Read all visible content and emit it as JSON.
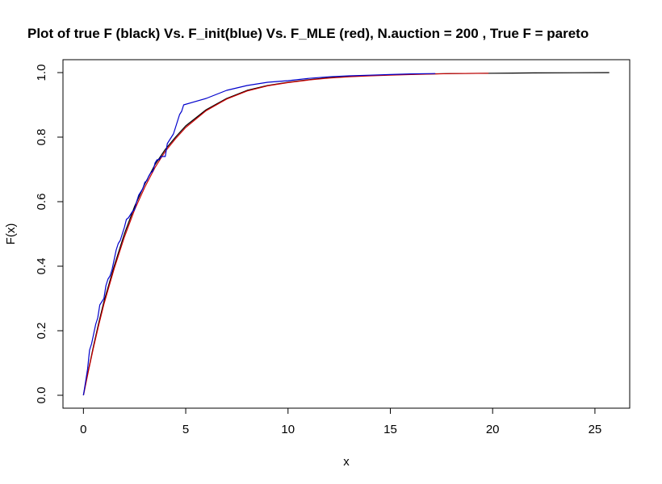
{
  "chart_data": {
    "type": "line",
    "title": "Plot of true F (black) Vs. F_init(blue) Vs. F_MLE (red), N.auction = 200 , True F = pareto",
    "xlabel": "x",
    "ylabel": "F(x)",
    "xlim": [
      -1.0,
      26.7
    ],
    "ylim": [
      -0.04,
      1.04
    ],
    "x_ticks": [
      0,
      5,
      10,
      15,
      20,
      25
    ],
    "x_tick_labels": [
      "0",
      "5",
      "10",
      "15",
      "20",
      "25"
    ],
    "y_ticks": [
      0.0,
      0.2,
      0.4,
      0.6,
      0.8,
      1.0
    ],
    "y_tick_labels": [
      "0.0",
      "0.2",
      "0.4",
      "0.6",
      "0.8",
      "1.0"
    ],
    "grid": false,
    "legend": "none",
    "series": [
      {
        "color": "#000000",
        "x": [
          0,
          0.25,
          0.5,
          0.75,
          1,
          1.5,
          2,
          2.5,
          3,
          3.5,
          4,
          4.5,
          5,
          6,
          7,
          8,
          9,
          10,
          11,
          12,
          13,
          14,
          15,
          16,
          18,
          20,
          22,
          24,
          25.7
        ],
        "y": [
          0.0,
          0.08,
          0.155,
          0.225,
          0.29,
          0.4,
          0.5,
          0.585,
          0.655,
          0.715,
          0.762,
          0.8,
          0.835,
          0.885,
          0.92,
          0.945,
          0.96,
          0.97,
          0.978,
          0.984,
          0.988,
          0.991,
          0.993,
          0.995,
          0.997,
          0.998,
          0.999,
          0.9995,
          1.0
        ]
      },
      {
        "color": "#cc0000",
        "x": [
          0,
          0.25,
          0.5,
          0.75,
          1,
          1.5,
          2,
          2.5,
          3,
          3.5,
          4,
          4.5,
          5,
          6,
          7,
          8,
          9,
          10,
          11,
          12,
          13,
          14,
          15,
          16,
          18,
          19.8
        ],
        "y": [
          0.0,
          0.077,
          0.15,
          0.218,
          0.282,
          0.392,
          0.49,
          0.575,
          0.645,
          0.706,
          0.756,
          0.795,
          0.83,
          0.882,
          0.918,
          0.943,
          0.959,
          0.969,
          0.977,
          0.983,
          0.987,
          0.99,
          0.992,
          0.994,
          0.997,
          0.998
        ]
      },
      {
        "color": "#0000cc",
        "x": [
          0,
          0.1,
          0.2,
          0.3,
          0.4,
          0.5,
          0.6,
          0.7,
          0.8,
          0.9,
          1.0,
          1.1,
          1.2,
          1.3,
          1.4,
          1.5,
          1.6,
          1.7,
          1.8,
          1.9,
          2.0,
          2.1,
          2.2,
          2.3,
          2.4,
          2.5,
          2.6,
          2.7,
          2.8,
          2.9,
          3.0,
          3.1,
          3.2,
          3.3,
          3.4,
          3.5,
          3.6,
          3.7,
          3.8,
          3.9,
          4.0,
          4.1,
          4.2,
          4.3,
          4.4,
          4.5,
          4.6,
          4.7,
          4.8,
          4.9,
          6.0,
          7.0,
          8.0,
          9.0,
          10.0,
          11.0,
          12.0,
          13.0,
          14.0,
          15.0,
          16.0,
          17.2
        ],
        "y": [
          0.0,
          0.04,
          0.08,
          0.14,
          0.16,
          0.19,
          0.22,
          0.24,
          0.28,
          0.29,
          0.3,
          0.34,
          0.36,
          0.37,
          0.39,
          0.42,
          0.45,
          0.47,
          0.48,
          0.5,
          0.52,
          0.545,
          0.55,
          0.56,
          0.57,
          0.575,
          0.6,
          0.62,
          0.63,
          0.64,
          0.66,
          0.665,
          0.68,
          0.69,
          0.695,
          0.72,
          0.73,
          0.73,
          0.74,
          0.74,
          0.74,
          0.78,
          0.79,
          0.8,
          0.81,
          0.83,
          0.85,
          0.87,
          0.88,
          0.9,
          0.92,
          0.945,
          0.96,
          0.97,
          0.975,
          0.982,
          0.987,
          0.99,
          0.992,
          0.994,
          0.996,
          0.997
        ]
      }
    ]
  }
}
